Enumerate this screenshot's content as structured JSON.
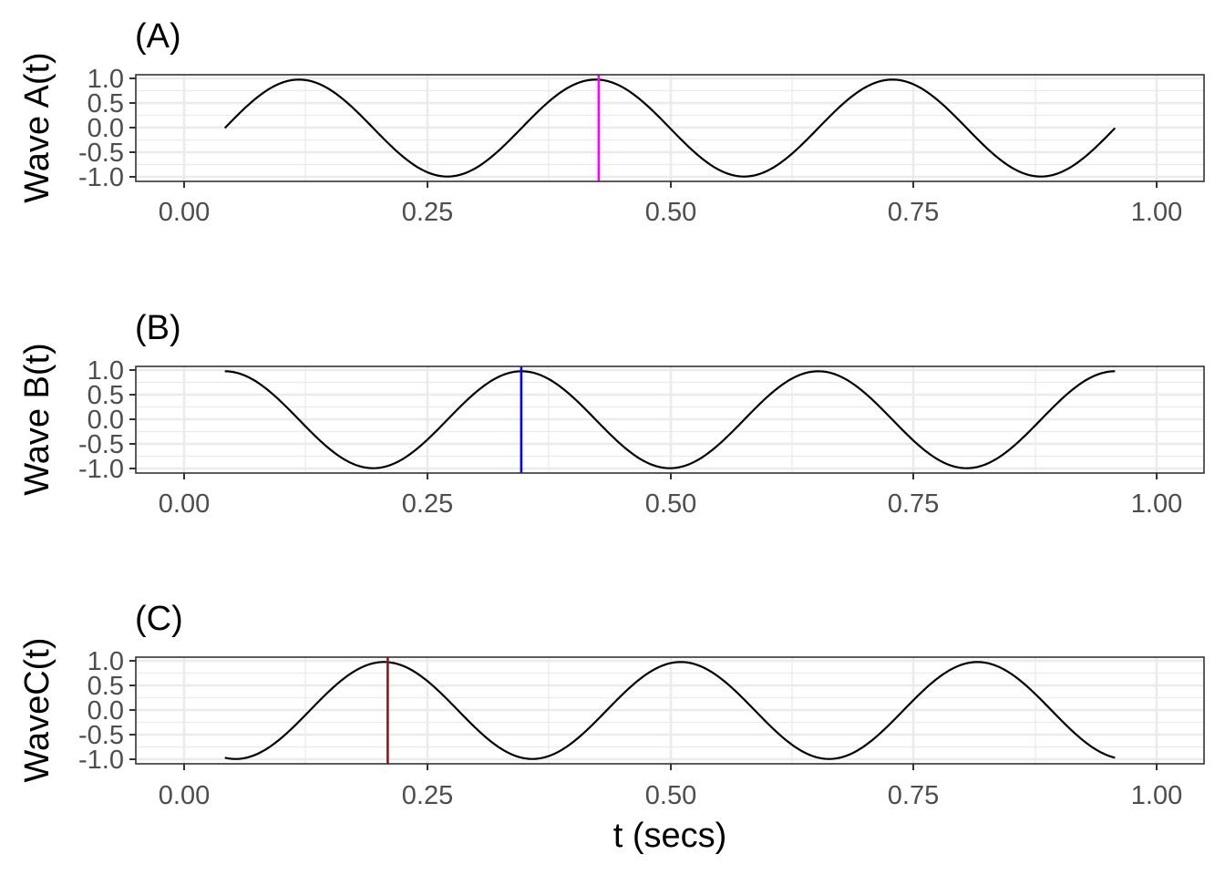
{
  "chart_data": [
    {
      "type": "line",
      "title": "(A)",
      "xlabel": "",
      "ylabel": "Wave A(t)",
      "xlim": [
        -0.1,
        1.1
      ],
      "ylim": [
        -1.1,
        1.1
      ],
      "x_ticks": [
        "0.00",
        "0.25",
        "0.50",
        "0.75",
        "1.00"
      ],
      "y_ticks": [
        "1.0",
        "0.5",
        "0.0",
        "-0.5",
        "-1.0"
      ],
      "grid": true,
      "series": [
        {
          "function": "sin",
          "frequency_hz": 3,
          "phase_rad": 0,
          "amplitude": 1,
          "samples": 401,
          "color": "#000000"
        }
      ],
      "vline": {
        "x": 0.42,
        "color": "#ff00ff"
      }
    },
    {
      "type": "line",
      "title": "(B)",
      "xlabel": "",
      "ylabel": "Wave B(t)",
      "xlim": [
        -0.1,
        1.1
      ],
      "ylim": [
        -1.1,
        1.1
      ],
      "x_ticks": [
        "0.00",
        "0.25",
        "0.50",
        "0.75",
        "1.00"
      ],
      "y_ticks": [
        "1.0",
        "0.5",
        "0.0",
        "-0.5",
        "-1.0"
      ],
      "grid": true,
      "series": [
        {
          "function": "cos",
          "frequency_hz": 3,
          "phase_rad": 0,
          "amplitude": 1,
          "samples": 401,
          "color": "#000000"
        }
      ],
      "vline": {
        "x": 0.333,
        "color": "#0000ff"
      }
    },
    {
      "type": "line",
      "title": "(C)",
      "xlabel": "t (secs)",
      "ylabel": "WaveC(t)",
      "xlim": [
        -0.1,
        1.1
      ],
      "ylim": [
        -1.1,
        1.1
      ],
      "x_ticks": [
        "0.00",
        "0.25",
        "0.50",
        "0.75",
        "1.00"
      ],
      "y_ticks": [
        "1.0",
        "0.5",
        "0.0",
        "-0.5",
        "-1.0"
      ],
      "grid": true,
      "series": [
        {
          "function": "sin",
          "frequency_hz": 3,
          "phase_rad": -1.8,
          "amplitude": 1,
          "samples": 401,
          "color": "#000000"
        }
      ],
      "vline": {
        "x": 0.183,
        "color": "#8b1a1a"
      }
    }
  ]
}
